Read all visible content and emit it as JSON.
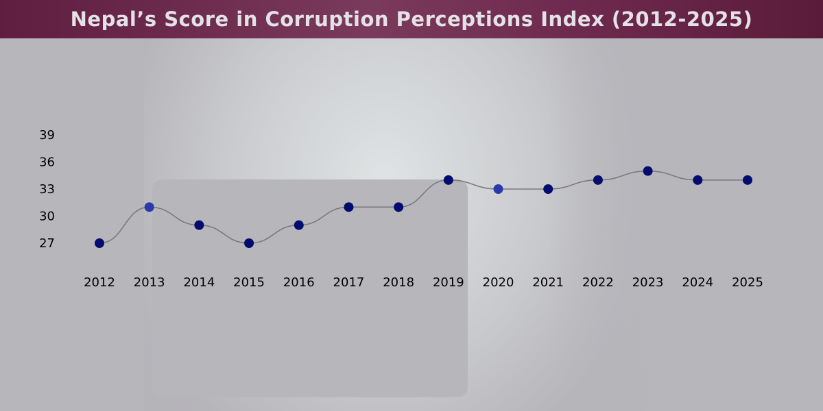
{
  "title": "Nepal’s Score in Corruption Perceptions Index (2012-2025)",
  "chart_data": {
    "type": "line",
    "title": "Nepal’s Score in Corruption Perceptions Index (2012-2025)",
    "xlabel": "",
    "ylabel": "",
    "categories": [
      "2012",
      "2013",
      "2014",
      "2015",
      "2016",
      "2017",
      "2018",
      "2019",
      "2020",
      "2021",
      "2022",
      "2023",
      "2024",
      "2025"
    ],
    "values": [
      27,
      31,
      29,
      27,
      29,
      31,
      31,
      34,
      33,
      33,
      34,
      35,
      34,
      34
    ],
    "yticks": [
      27,
      30,
      33,
      36,
      39
    ],
    "ylim": [
      27,
      39
    ],
    "grid": false,
    "smooth": true,
    "colors": {
      "marker": "#020c6e",
      "marker_highlight": "#2a3aa8",
      "line": "#7a7a7e",
      "title_bar": "#6b2748"
    }
  }
}
